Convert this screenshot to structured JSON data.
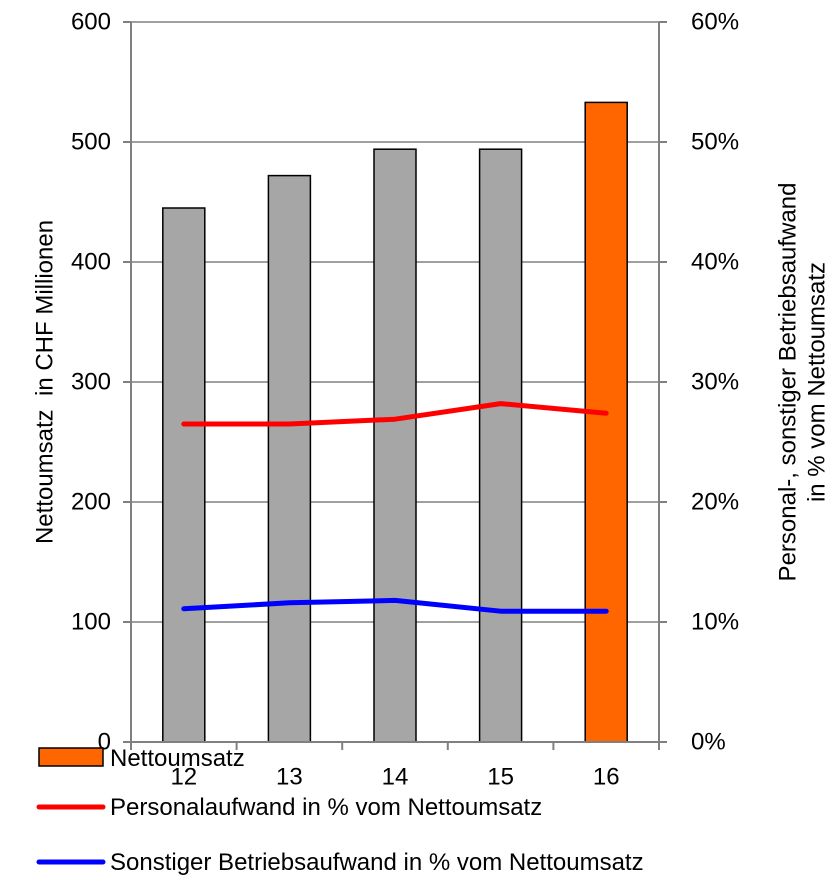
{
  "chart_data": {
    "type": "bar",
    "categories": [
      "12",
      "13",
      "14",
      "15",
      "16"
    ],
    "series": [
      {
        "name": "Nettoumsatz",
        "kind": "bar",
        "axis": "left",
        "values": [
          445,
          472,
          494,
          494,
          533
        ],
        "colors": [
          "#a6a6a6",
          "#a6a6a6",
          "#a6a6a6",
          "#a6a6a6",
          "#ff6600"
        ]
      },
      {
        "name": "Personalaufwand in % vom Nettoumsatz",
        "kind": "line",
        "axis": "right",
        "values": [
          0.265,
          0.265,
          0.269,
          0.282,
          0.274
        ],
        "color": "#ff0000"
      },
      {
        "name": "Sonstiger Betriebsaufwand in % vom Nettoumsatz",
        "kind": "line",
        "axis": "right",
        "values": [
          0.111,
          0.116,
          0.118,
          0.109,
          0.109
        ],
        "color": "#0000ff"
      }
    ],
    "ylabel": "Nettoumsatz  in CHF Millionen",
    "y2label_lines": [
      "Personal-, sonstiger Betriebsaufwand",
      "in % vom Nettoumsatz"
    ],
    "ylim": [
      0,
      600
    ],
    "yticks": [
      "0",
      "100",
      "200",
      "300",
      "400",
      "500",
      "600"
    ],
    "y2lim": [
      0,
      0.6
    ],
    "y2ticks": [
      "0%",
      "10%",
      "20%",
      "30%",
      "40%",
      "50%",
      "60%"
    ],
    "grid": true,
    "legend_position": "bottom",
    "legend": [
      "Nettoumsatz",
      "Personalaufwand in % vom Nettoumsatz",
      "Sonstiger Betriebsaufwand in % vom Nettoumsatz"
    ]
  }
}
